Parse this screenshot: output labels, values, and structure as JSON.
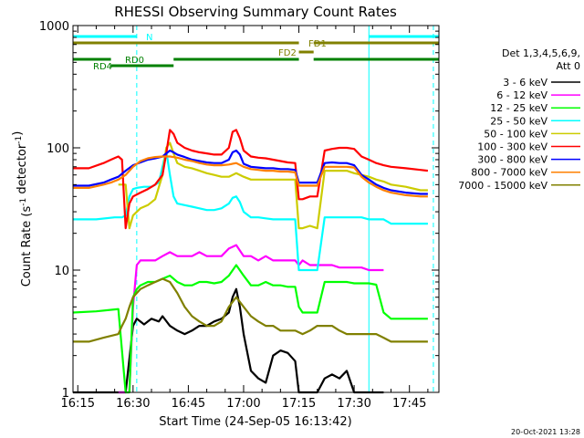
{
  "chart_data": {
    "type": "line",
    "title": "RHESSI Observing Summary Count Rates",
    "xlabel": "Start Time (24-Sep-05 16:13:42)",
    "ylabel": "Count Rate (s⁻¹ detector⁻¹)",
    "yscale": "log",
    "ylim": [
      1,
      1000
    ],
    "xlim_minutes": [
      13.7,
      113.0
    ],
    "x_unit": "minutes after 16:00",
    "xticks": [
      {
        "value": 15,
        "label": "16:15"
      },
      {
        "value": 30,
        "label": "16:30"
      },
      {
        "value": 45,
        "label": "16:45"
      },
      {
        "value": 60,
        "label": "17:00"
      },
      {
        "value": 75,
        "label": "17:15"
      },
      {
        "value": 90,
        "label": "17:30"
      },
      {
        "value": 105,
        "label": "17:45"
      }
    ],
    "yticks": [
      {
        "value": 1,
        "label": "1"
      },
      {
        "value": 10,
        "label": "10"
      },
      {
        "value": 100,
        "label": "100"
      },
      {
        "value": 1000,
        "label": "1000"
      }
    ],
    "legend": {
      "title1": "Det 1,3,4,5,6,9,",
      "title2": "Att 0",
      "position": "right"
    },
    "series": [
      {
        "name": "3 - 6 keV",
        "color": "#000000",
        "x": [
          13.7,
          26,
          28,
          30,
          31,
          33,
          35,
          37,
          38,
          40,
          42,
          44,
          46,
          48,
          50,
          52,
          54,
          56,
          57,
          58,
          59,
          60,
          62,
          64,
          66,
          68,
          70,
          72,
          74,
          75,
          76,
          78,
          80,
          82,
          84,
          86,
          88,
          90,
          92,
          94,
          96,
          98
        ],
        "y": [
          1,
          1,
          1,
          3.5,
          4,
          3.6,
          4,
          3.8,
          4.2,
          3.5,
          3.2,
          3,
          3.2,
          3.5,
          3.5,
          3.8,
          4,
          4.5,
          6,
          7,
          5,
          3,
          1.5,
          1.3,
          1.2,
          2,
          2.2,
          2.1,
          1.8,
          1,
          1,
          1,
          1,
          1.3,
          1.4,
          1.3,
          1.5,
          1,
          1,
          1,
          1,
          1
        ]
      },
      {
        "name": "6 - 12 keV",
        "color": "#ff00ff",
        "x": [
          26,
          29,
          30,
          31,
          32,
          34,
          36,
          38,
          40,
          42,
          44,
          46,
          48,
          50,
          52,
          54,
          56,
          58,
          60,
          62,
          64,
          66,
          68,
          70,
          72,
          74,
          75,
          76,
          78,
          80,
          82,
          84,
          86,
          88,
          90,
          92,
          94,
          96,
          98
        ],
        "y": [
          1,
          1,
          5,
          11,
          12,
          12,
          12,
          13,
          14,
          13,
          13,
          13,
          14,
          13,
          13,
          13,
          15,
          16,
          13,
          13,
          12,
          13,
          12,
          12,
          12,
          12,
          11,
          12,
          11,
          11,
          11,
          11,
          10.5,
          10.5,
          10.5,
          10.5,
          10,
          10,
          10
        ]
      },
      {
        "name": "12 - 25 keV",
        "color": "#00ff00",
        "x": [
          13.7,
          20,
          26,
          28,
          29,
          30,
          31,
          32,
          34,
          36,
          38,
          40,
          42,
          44,
          46,
          48,
          50,
          52,
          54,
          56,
          58,
          60,
          62,
          64,
          66,
          68,
          70,
          72,
          74,
          75,
          76,
          78,
          80,
          82,
          84,
          86,
          88,
          90,
          92,
          94,
          96,
          98,
          100,
          104,
          108,
          110
        ],
        "y": [
          4.5,
          4.6,
          4.8,
          1,
          1,
          6,
          7,
          7.5,
          8,
          8,
          8.5,
          9,
          8,
          7.5,
          7.5,
          8,
          8,
          7.8,
          8,
          9,
          11,
          9,
          7.5,
          7.5,
          8,
          7.5,
          7.5,
          7.3,
          7.3,
          5,
          4.5,
          4.5,
          4.5,
          8,
          8,
          8,
          8,
          7.8,
          7.8,
          7.8,
          7.6,
          4.5,
          4,
          4,
          4,
          4
        ]
      },
      {
        "name": "25 - 50 keV",
        "color": "#00ffff",
        "x": [
          13.7,
          20,
          25,
          27,
          28,
          29,
          30,
          31,
          33,
          35,
          37,
          38,
          39,
          40,
          41,
          42,
          44,
          46,
          48,
          50,
          52,
          54,
          56,
          57,
          58,
          59,
          60,
          62,
          64,
          66,
          68,
          70,
          72,
          74,
          75,
          76,
          78,
          80,
          82,
          84,
          86,
          88,
          90,
          92,
          94,
          96,
          98,
          100,
          104,
          108,
          110
        ],
        "y": [
          26,
          26,
          27,
          27,
          28,
          40,
          46,
          47,
          48,
          48,
          52,
          70,
          95,
          60,
          40,
          35,
          34,
          33,
          32,
          31,
          31,
          32,
          35,
          39,
          40,
          36,
          30,
          27,
          27,
          26.5,
          26,
          26,
          26,
          26,
          10,
          10,
          10,
          10,
          27,
          27,
          27,
          27,
          27,
          27,
          26,
          26,
          26,
          24,
          24,
          24,
          24
        ]
      },
      {
        "name": "50 - 100 keV",
        "color": "#cccc00",
        "x": [
          26,
          28,
          29,
          30,
          32,
          34,
          36,
          38,
          39,
          40,
          41,
          42,
          44,
          46,
          48,
          50,
          52,
          54,
          56,
          58,
          60,
          62,
          64,
          66,
          68,
          70,
          72,
          74,
          75,
          76,
          78,
          80,
          82,
          84,
          86,
          88,
          90,
          92,
          94,
          96,
          98,
          100,
          104,
          108,
          110
        ],
        "y": [
          50,
          50,
          22,
          28,
          32,
          34,
          38,
          60,
          100,
          110,
          90,
          75,
          70,
          68,
          65,
          62,
          60,
          58,
          58,
          62,
          58,
          55,
          55,
          55,
          55,
          55,
          55,
          55,
          22,
          22,
          23,
          22,
          65,
          65,
          65,
          65,
          62,
          60,
          58,
          55,
          53,
          50,
          48,
          45,
          45
        ]
      },
      {
        "name": "100 - 300 keV",
        "color": "#ff0000",
        "x": [
          13.7,
          18,
          22,
          24,
          26,
          27,
          28,
          29,
          30,
          32,
          34,
          36,
          38,
          39,
          40,
          41,
          42,
          44,
          46,
          48,
          50,
          52,
          54,
          56,
          57,
          58,
          59,
          60,
          62,
          64,
          66,
          68,
          70,
          72,
          74,
          75,
          76,
          78,
          80,
          82,
          84,
          86,
          88,
          90,
          92,
          94,
          96,
          98,
          100,
          104,
          108,
          110
        ],
        "y": [
          68,
          68,
          75,
          80,
          85,
          80,
          22,
          35,
          40,
          43,
          46,
          50,
          60,
          90,
          140,
          130,
          110,
          100,
          95,
          92,
          90,
          88,
          88,
          100,
          135,
          140,
          120,
          95,
          85,
          83,
          82,
          80,
          78,
          76,
          75,
          38,
          38,
          40,
          40,
          95,
          98,
          100,
          100,
          98,
          85,
          80,
          75,
          72,
          70,
          68,
          66,
          65
        ]
      },
      {
        "name": "300 - 800 keV",
        "color": "#0000ff",
        "x": [
          13.7,
          18,
          22,
          24,
          26,
          28,
          30,
          32,
          34,
          36,
          38,
          39,
          40,
          41,
          42,
          44,
          46,
          48,
          50,
          52,
          54,
          56,
          57,
          58,
          59,
          60,
          62,
          64,
          66,
          68,
          70,
          72,
          74,
          75,
          76,
          78,
          80,
          82,
          84,
          86,
          88,
          90,
          92,
          94,
          96,
          98,
          100,
          104,
          108,
          110
        ],
        "y": [
          49,
          49,
          52,
          55,
          58,
          65,
          72,
          76,
          80,
          82,
          85,
          90,
          95,
          92,
          88,
          84,
          80,
          78,
          76,
          75,
          75,
          80,
          92,
          95,
          88,
          74,
          70,
          69,
          68,
          68,
          67,
          67,
          66,
          52,
          52,
          52,
          52,
          75,
          76,
          75,
          75,
          72,
          60,
          55,
          50,
          47,
          45,
          43,
          42,
          42
        ]
      },
      {
        "name": "800 - 7000 keV",
        "color": "#ff8000",
        "x": [
          13.7,
          18,
          22,
          24,
          26,
          28,
          30,
          32,
          34,
          36,
          38,
          40,
          42,
          44,
          46,
          48,
          50,
          52,
          54,
          56,
          58,
          60,
          62,
          64,
          66,
          68,
          70,
          72,
          74,
          75,
          76,
          78,
          80,
          82,
          84,
          86,
          88,
          90,
          92,
          94,
          96,
          98,
          100,
          104,
          108,
          110
        ],
        "y": [
          47,
          47,
          50,
          52,
          55,
          60,
          70,
          78,
          82,
          84,
          85,
          85,
          83,
          80,
          78,
          75,
          73,
          72,
          72,
          73,
          75,
          70,
          67,
          66,
          65,
          65,
          64,
          64,
          63,
          49,
          49,
          49,
          49,
          70,
          70,
          70,
          70,
          69,
          58,
          52,
          48,
          45,
          43,
          41,
          40,
          40
        ]
      },
      {
        "name": "7000 - 15000 keV",
        "color": "#808000",
        "x": [
          13.7,
          18,
          22,
          26,
          27,
          28,
          29,
          30,
          32,
          34,
          36,
          38,
          40,
          42,
          44,
          46,
          48,
          50,
          52,
          54,
          56,
          58,
          60,
          62,
          64,
          66,
          68,
          70,
          72,
          74,
          76,
          78,
          80,
          82,
          84,
          86,
          88,
          90,
          92,
          94,
          96,
          98,
          100,
          104,
          108,
          110
        ],
        "y": [
          2.6,
          2.6,
          2.8,
          3,
          3.5,
          4,
          5,
          6,
          7,
          7.5,
          8,
          8.5,
          8,
          6.5,
          5,
          4.2,
          3.8,
          3.5,
          3.5,
          3.8,
          5,
          6,
          5,
          4.2,
          3.8,
          3.5,
          3.5,
          3.2,
          3.2,
          3.2,
          3,
          3.2,
          3.5,
          3.5,
          3.5,
          3.2,
          3,
          3,
          3,
          3,
          3,
          2.8,
          2.6,
          2.6,
          2.6,
          2.6
        ]
      }
    ],
    "state_bars": [
      {
        "label": "N",
        "color": "#00ffff",
        "segments": [
          [
            13.7,
            31
          ],
          [
            94,
            113
          ]
        ]
      },
      {
        "label": "FD1",
        "color": "#808000",
        "segments": [
          [
            13.7,
            75
          ],
          [
            79,
            113
          ]
        ]
      },
      {
        "label": "FD2",
        "color": "#808000",
        "segments": [
          [
            75,
            79
          ]
        ]
      },
      {
        "label": "RD0",
        "color": "#008000",
        "segments": [
          [
            13.7,
            24
          ],
          [
            41,
            75
          ],
          [
            79,
            113
          ]
        ]
      },
      {
        "label": "RD4",
        "color": "#008000",
        "segments": [
          [
            24,
            41
          ]
        ]
      }
    ],
    "vertical_markers": [
      {
        "x": 31,
        "color": "#00ffff",
        "style": "dashed"
      },
      {
        "x": 94,
        "color": "#00ffff",
        "style": "solid"
      },
      {
        "x": 111.5,
        "color": "#00ffff",
        "style": "dashed"
      }
    ],
    "footer": "20-Oct-2021 13:28"
  }
}
